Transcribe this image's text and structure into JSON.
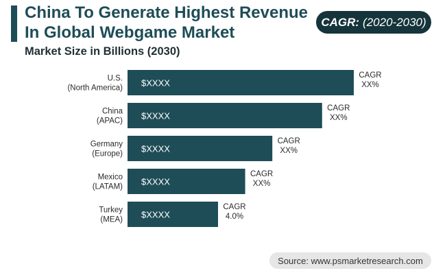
{
  "title": "China To Generate Highest Revenue In Global Webgame Market",
  "subtitle": "Market Size in Billions (2030)",
  "cagr_badge": {
    "label": "CAGR:",
    "period": "(2020-2030)"
  },
  "source": "Source: www.psmarketresearch.com",
  "colors": {
    "bar": "#1e4d57",
    "accent": "#1e4d57",
    "badge": "#15343b"
  },
  "chart_data": {
    "type": "bar",
    "orientation": "horizontal",
    "categories": [
      [
        "U.S.",
        "(North America)"
      ],
      [
        "China",
        "(APAC)"
      ],
      [
        "Germany",
        "(Europe)"
      ],
      [
        "Mexico",
        "(LATAM)"
      ],
      [
        "Turkey",
        "(MEA)"
      ]
    ],
    "values": [
      100,
      86,
      64,
      52,
      40
    ],
    "value_labels": [
      "$XXXX",
      "$XXXX",
      "$XXXX",
      "$XXXX",
      "$XXXX"
    ],
    "cagr_labels": [
      [
        "CAGR",
        "XX%"
      ],
      [
        "CAGR",
        "XX%"
      ],
      [
        "CAGR",
        "XX%"
      ],
      [
        "CAGR",
        "XX%"
      ],
      [
        "CAGR",
        "4.0%"
      ]
    ],
    "xlim": [
      0,
      100
    ],
    "grid": false,
    "legend": "none"
  }
}
